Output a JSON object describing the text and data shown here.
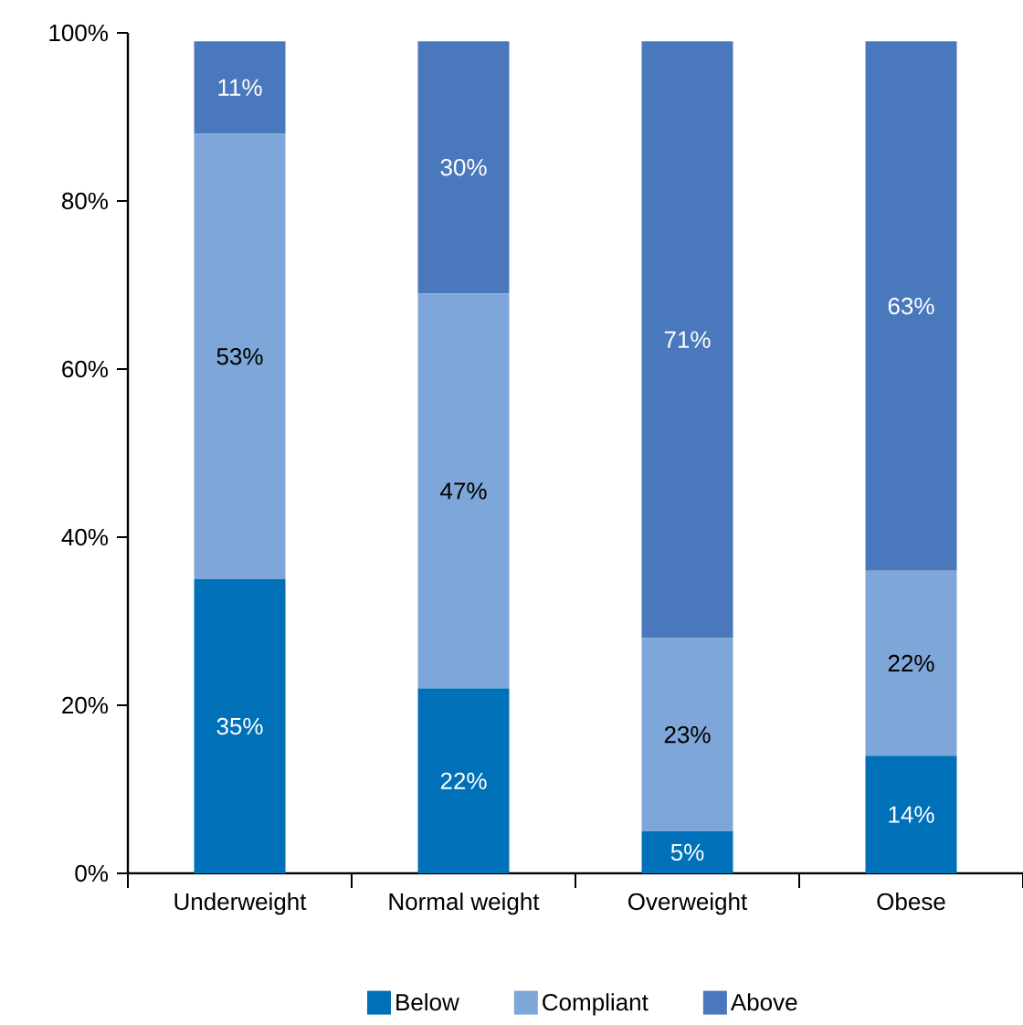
{
  "chart_data": {
    "type": "bar",
    "stacked": true,
    "categories": [
      "Underweight",
      "Normal weight",
      "Overweight",
      "Obese"
    ],
    "ylim": [
      0,
      100
    ],
    "yticks": [
      {
        "value": 0,
        "label": "0%"
      },
      {
        "value": 20,
        "label": "20%"
      },
      {
        "value": 40,
        "label": "40%"
      },
      {
        "value": 60,
        "label": "60%"
      },
      {
        "value": 80,
        "label": "80%"
      },
      {
        "value": 100,
        "label": "100%"
      }
    ],
    "series": [
      {
        "name": "Below",
        "color": "#0070b8",
        "values": [
          35,
          22,
          5,
          14
        ],
        "value_labels": [
          "35%",
          "22%",
          "5%",
          "14%"
        ]
      },
      {
        "name": "Compliant",
        "color": "#7ea6d8",
        "values": [
          53,
          47,
          23,
          22
        ],
        "value_labels": [
          "53%",
          "47%",
          "23%",
          "22%"
        ]
      },
      {
        "name": "Above",
        "color": "#4a78bc",
        "values": [
          11,
          30,
          71,
          63
        ],
        "value_labels": [
          "11%",
          "30%",
          "71%",
          "63%"
        ]
      }
    ],
    "legend": "bottom",
    "grid": false
  }
}
